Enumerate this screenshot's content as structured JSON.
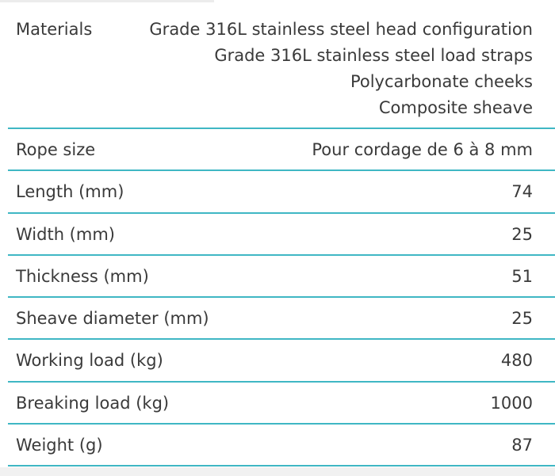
{
  "table": {
    "rows": [
      {
        "label": "Materials",
        "values": [
          "Grade 316L stainless steel head configuration",
          "Grade 316L stainless steel load straps",
          "Polycarbonate cheeks",
          "Composite sheave"
        ]
      },
      {
        "label": "Rope size",
        "values": [
          "Pour cordage de 6 à 8 mm"
        ]
      },
      {
        "label": "Length (mm)",
        "values": [
          "74"
        ]
      },
      {
        "label": "Width (mm)",
        "values": [
          "25"
        ]
      },
      {
        "label": "Thickness (mm)",
        "values": [
          "51"
        ]
      },
      {
        "label": "Sheave diameter (mm)",
        "values": [
          "25"
        ]
      },
      {
        "label": "Working load (kg)",
        "values": [
          "480"
        ]
      },
      {
        "label": "Breaking load (kg)",
        "values": [
          "1000"
        ]
      },
      {
        "label": "Weight (g)",
        "values": [
          "87"
        ]
      }
    ]
  }
}
